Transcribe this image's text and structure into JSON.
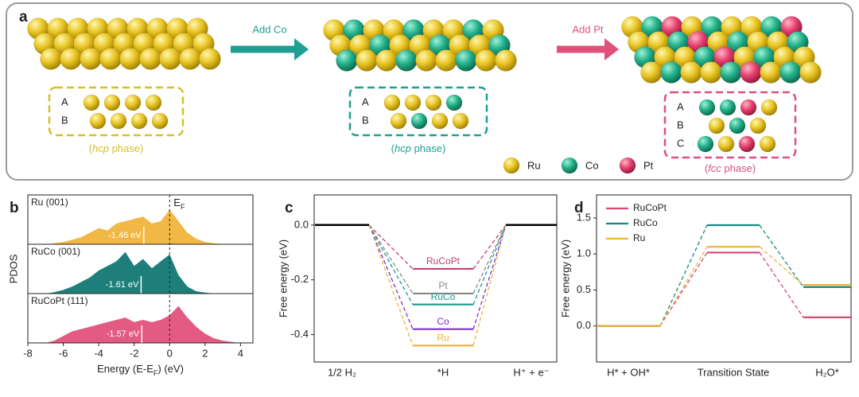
{
  "diagram": {
    "panel": "a",
    "arrows": [
      "Add Co",
      "Add Pt"
    ],
    "structures": [
      {
        "layers": [
          {
            "name": "A",
            "atoms": [
              "Ru",
              "Ru",
              "Ru",
              "Ru"
            ]
          },
          {
            "name": "B",
            "atoms": [
              "Ru",
              "Ru",
              "Ru",
              "Ru"
            ]
          }
        ],
        "phase": [
          "(",
          "hcp",
          " phase)"
        ]
      },
      {
        "layers": [
          {
            "name": "A",
            "atoms": [
              "Ru",
              "Ru",
              "Ru",
              "Co"
            ]
          },
          {
            "name": "B",
            "atoms": [
              "Ru",
              "Co",
              "Ru",
              "Ru"
            ]
          }
        ],
        "phase": [
          "(",
          "hcp",
          " phase)"
        ]
      },
      {
        "layers": [
          {
            "name": "A",
            "atoms": [
              "Co",
              "Co",
              "Pt",
              "Ru"
            ]
          },
          {
            "name": "B",
            "atoms": [
              "Ru",
              "Co",
              "Ru"
            ]
          },
          {
            "name": "C",
            "atoms": [
              "Co",
              "Ru",
              "Pt",
              "Ru"
            ]
          }
        ],
        "phase": [
          "(",
          "fcc",
          " phase)"
        ]
      }
    ],
    "legend": [
      "Ru",
      "Co",
      "Pt"
    ]
  },
  "chart_data": [
    {
      "type": "area",
      "panel": "b",
      "ylabel": "PDOS",
      "xlabel_parts": [
        "Energy (E-E",
        "F",
        ") (eV)"
      ],
      "fermi_label_parts": [
        "E",
        "F"
      ],
      "x": [
        -7,
        -6.5,
        -6,
        -5.5,
        -5,
        -4.5,
        -4,
        -3.5,
        -3,
        -2.5,
        -2,
        -1.5,
        -1,
        -0.5,
        0,
        0.5,
        1,
        1.5,
        2,
        2.5,
        3,
        3.5,
        4
      ],
      "xlim": [
        -8,
        4.7
      ],
      "xticks": [
        -8,
        -6,
        -4,
        -2,
        0,
        2,
        4
      ],
      "ylim": [
        0,
        1
      ],
      "series": [
        {
          "name": "Ru (001)",
          "color": "#f2b845",
          "d_band_center": -1.46,
          "d_band_label": "-1.46 eV",
          "values": [
            0,
            0.02,
            0.05,
            0.1,
            0.15,
            0.25,
            0.35,
            0.3,
            0.45,
            0.5,
            0.55,
            0.6,
            0.45,
            0.5,
            0.75,
            0.5,
            0.25,
            0.12,
            0.05,
            0.02,
            0,
            0,
            0
          ]
        },
        {
          "name": "RuCo (001)",
          "color": "#1e7f7a",
          "d_band_center": -1.61,
          "d_band_label": "-1.61 eV",
          "values": [
            0,
            0.03,
            0.08,
            0.15,
            0.25,
            0.35,
            0.5,
            0.6,
            0.7,
            0.9,
            0.6,
            0.75,
            0.55,
            0.7,
            0.85,
            0.4,
            0.15,
            0.05,
            0.02,
            0,
            0,
            0,
            0
          ]
        },
        {
          "name": "RuCoPt (111)",
          "color": "#e35a82",
          "d_band_center": -1.57,
          "d_band_label": "-1.57 eV",
          "values": [
            0,
            0.05,
            0.15,
            0.25,
            0.3,
            0.35,
            0.4,
            0.45,
            0.5,
            0.55,
            0.45,
            0.5,
            0.45,
            0.5,
            0.6,
            0.8,
            0.55,
            0.35,
            0.2,
            0.1,
            0.05,
            0.02,
            0
          ]
        }
      ]
    },
    {
      "type": "energy-profile",
      "panel": "c",
      "ylabel": "Free energy (eV)",
      "categories": [
        "1/2 H₂",
        "*H",
        "H⁺ + e⁻"
      ],
      "ylim": [
        -0.5,
        0.11
      ],
      "yticks": [
        {
          "value": 0,
          "label": "0.0"
        },
        -0.2,
        -0.4
      ],
      "shared_level_color": "#000000",
      "labels_on_levels": true,
      "series": [
        {
          "name": "RuCoPt",
          "color": "#c2406a",
          "values": [
            0,
            -0.16,
            0
          ]
        },
        {
          "name": "Pt",
          "color": "#8a8a8a",
          "values": [
            0,
            -0.25,
            0
          ]
        },
        {
          "name": "RuCo",
          "color": "#1a9a94",
          "values": [
            0,
            -0.29,
            0
          ]
        },
        {
          "name": "Co",
          "color": "#7b2fd6",
          "values": [
            0,
            -0.38,
            0
          ]
        },
        {
          "name": "Ru",
          "color": "#f0b040",
          "values": [
            0,
            -0.44,
            0
          ]
        }
      ]
    },
    {
      "type": "energy-profile",
      "panel": "d",
      "ylabel": "Free energy (eV)",
      "categories": [
        "H* + OH*",
        "Transition State",
        "H₂O*"
      ],
      "ylim": [
        -0.5,
        1.82
      ],
      "yticks": [
        {
          "value": 0,
          "label": "0.0"
        },
        0.5,
        {
          "value": 1,
          "label": "1.0"
        },
        1.5
      ],
      "legend": "upper left",
      "series": [
        {
          "name": "RuCoPt",
          "color": "#d9486e",
          "values": [
            0,
            1.02,
            0.12
          ]
        },
        {
          "name": "RuCo",
          "color": "#1a8a80",
          "values": [
            0,
            1.4,
            0.54
          ]
        },
        {
          "name": "Ru",
          "color": "#f0b040",
          "values": [
            0,
            1.1,
            0.57
          ]
        }
      ]
    }
  ]
}
